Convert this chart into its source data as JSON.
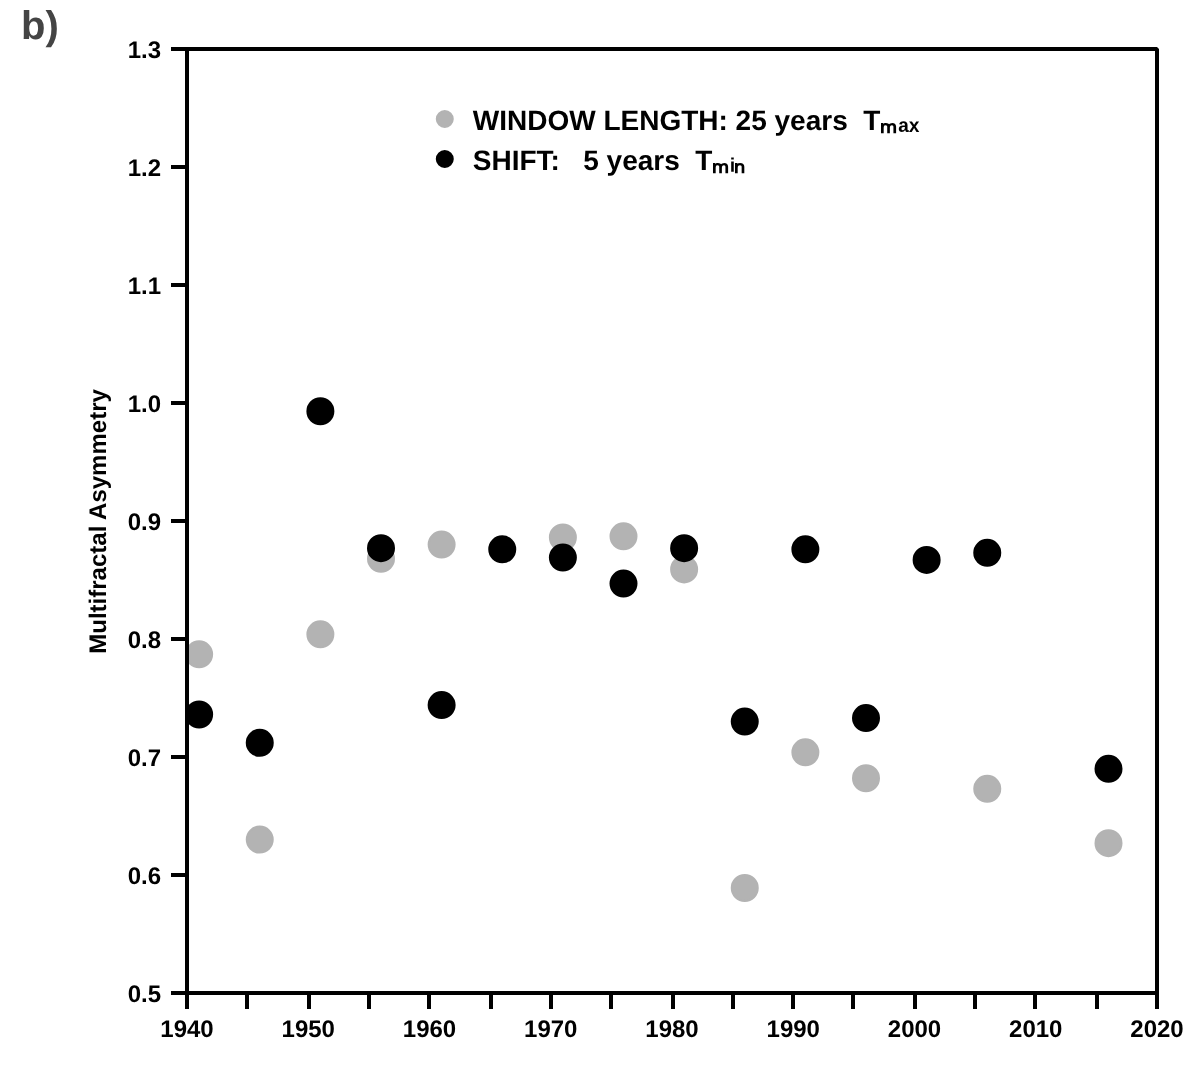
{
  "chart_data": {
    "type": "scatter",
    "ylabel": "Multifractal Asymmetry",
    "annotations": [
      "b)"
    ],
    "x": [
      1941,
      1946,
      1951,
      1956,
      1961,
      1966,
      1971,
      1976,
      1981,
      1986,
      1991,
      1996,
      2001,
      2006,
      2016
    ],
    "series": [
      {
        "name": "WINDOW LENGTH: 25 years  Tₘₐₓ",
        "color": "#b3b3b3",
        "values": [
          0.787,
          0.63,
          0.804,
          0.868,
          0.88,
          null,
          0.886,
          0.887,
          0.859,
          0.589,
          0.704,
          0.682,
          null,
          0.673,
          0.627
        ]
      },
      {
        "name": "SHIFT:   5 years  Tₘᵢₙ",
        "color": "#000000",
        "values": [
          0.736,
          0.712,
          0.993,
          0.877,
          0.744,
          0.876,
          0.869,
          0.847,
          0.877,
          0.73,
          0.876,
          0.733,
          0.867,
          0.873,
          0.69
        ]
      }
    ],
    "xlim": [
      1940,
      2020
    ],
    "ylim": [
      0.5,
      1.3
    ],
    "xticks": [
      1940,
      {
        "value": 1945,
        "label": null
      },
      1950,
      {
        "value": 1955,
        "label": null
      },
      1960,
      {
        "value": 1965,
        "label": null
      },
      1970,
      {
        "value": 1975,
        "label": null
      },
      1980,
      {
        "value": 1985,
        "label": null
      },
      1990,
      {
        "value": 1995,
        "label": null
      },
      2000,
      {
        "value": 2005,
        "label": null
      },
      2010,
      {
        "value": 2015,
        "label": null
      },
      2020
    ],
    "yticks": [
      {
        "value": 0.5,
        "label": "0.5"
      },
      {
        "value": 0.6,
        "label": "0.6"
      },
      {
        "value": 0.7,
        "label": "0.7"
      },
      {
        "value": 0.8,
        "label": "0.8"
      },
      {
        "value": 0.9,
        "label": "0.9"
      },
      {
        "value": 1.0,
        "label": "1.0"
      },
      {
        "value": 1.1,
        "label": "1.1"
      },
      {
        "value": 1.2,
        "label": "1.2"
      },
      {
        "value": 1.3,
        "label": "1.3"
      }
    ],
    "legend": "top",
    "grid": false,
    "marker": "circle"
  }
}
